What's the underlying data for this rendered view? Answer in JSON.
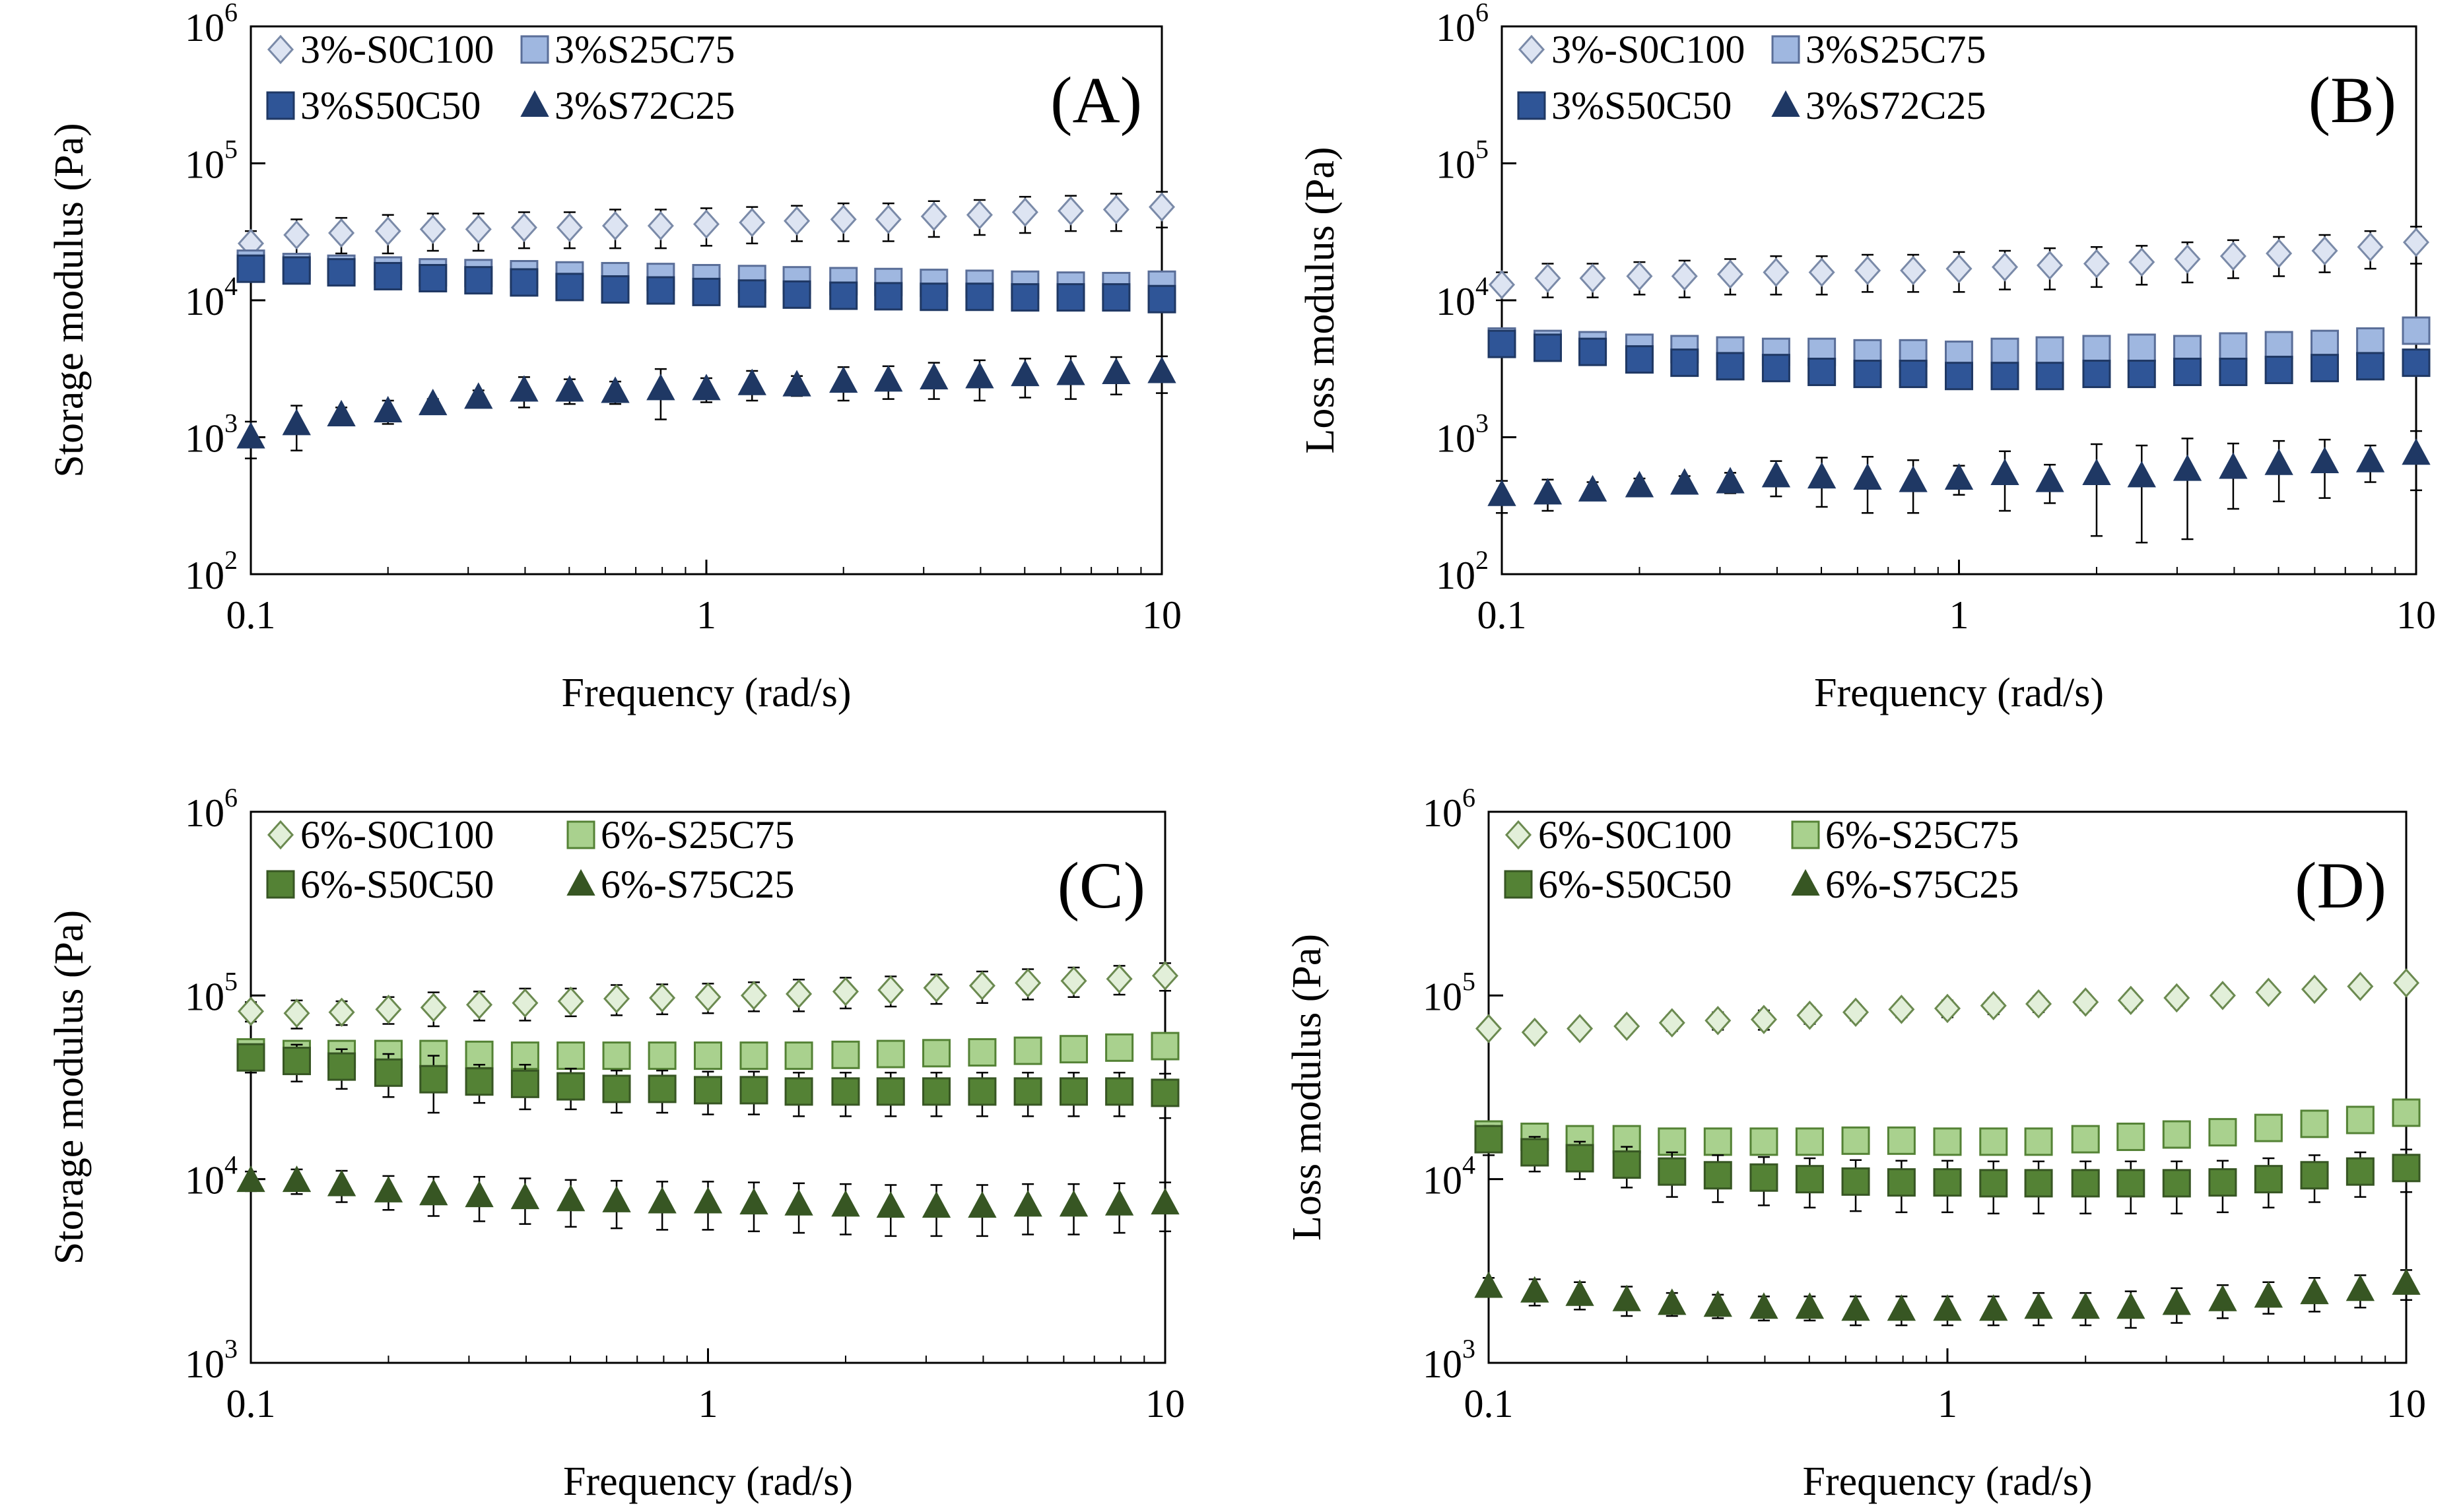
{
  "chart_data": [
    {
      "type": "scatter",
      "panel_label": "(A)",
      "xlabel": "Frequency (rad/s)",
      "ylabel": "Storage modulus (Pa)",
      "xscale": "log",
      "yscale": "log",
      "xlim": [
        0.1,
        10
      ],
      "ylim": [
        100,
        1000000
      ],
      "legend": "top-left",
      "x_tick_labels": [
        "0.1",
        "1",
        "10"
      ],
      "y_ticks": [
        {
          "base": "10",
          "exp": "2"
        },
        {
          "base": "10",
          "exp": "3"
        },
        {
          "base": "10",
          "exp": "4"
        },
        {
          "base": "10",
          "exp": "5"
        },
        {
          "base": "10",
          "exp": "6"
        }
      ],
      "x": [
        0.1,
        0.126,
        0.158,
        0.2,
        0.251,
        0.316,
        0.398,
        0.501,
        0.631,
        0.794,
        1.0,
        1.26,
        1.58,
        2.0,
        2.51,
        3.16,
        3.98,
        5.01,
        6.31,
        7.94,
        10.0
      ],
      "series": [
        {
          "name": "3%-S0C100",
          "marker": "diamond",
          "color": "#dde4f2",
          "stroke": "#7a8aa8",
          "values": [
            26000,
            30000,
            31000,
            32000,
            33000,
            33000,
            34000,
            34000,
            35000,
            35000,
            36000,
            37000,
            38000,
            39000,
            39000,
            41000,
            42000,
            44000,
            45000,
            46000,
            48000
          ],
          "err": [
            6000,
            9000,
            9000,
            10000,
            10000,
            10000,
            10000,
            10000,
            11000,
            11000,
            11000,
            11000,
            11000,
            12000,
            12000,
            12000,
            12000,
            13000,
            13000,
            14000,
            14000
          ]
        },
        {
          "name": "3%S25C75",
          "marker": "square",
          "color": "#9fb7e0",
          "stroke": "#5a6e98",
          "values": [
            18500,
            17500,
            17000,
            16500,
            16000,
            15800,
            15500,
            15200,
            15000,
            14800,
            14500,
            14300,
            14000,
            13800,
            13600,
            13400,
            13200,
            13000,
            12800,
            12700,
            13000
          ],
          "err": []
        },
        {
          "name": "3%S50C50",
          "marker": "square",
          "color": "#2f5597",
          "stroke": "#1f3864",
          "values": [
            17000,
            16500,
            16000,
            15000,
            14500,
            14000,
            13500,
            12500,
            12000,
            11800,
            11500,
            11200,
            11000,
            10800,
            10700,
            10600,
            10600,
            10500,
            10500,
            10500,
            10200
          ],
          "err": []
        },
        {
          "name": "3%S72C25",
          "marker": "triangle",
          "color": "#1f3864",
          "stroke": "#1f3864",
          "values": [
            1000,
            1250,
            1450,
            1550,
            1750,
            1950,
            2200,
            2200,
            2150,
            2250,
            2250,
            2450,
            2400,
            2550,
            2600,
            2700,
            2750,
            2850,
            2900,
            2950,
            3000
          ],
          "err": [
            300,
            450,
            200,
            300,
            150,
            250,
            550,
            450,
            400,
            900,
            450,
            600,
            400,
            700,
            700,
            800,
            900,
            900,
            1000,
            900,
            900
          ]
        }
      ]
    },
    {
      "type": "scatter",
      "panel_label": "(B)",
      "xlabel": "Frequency (rad/s)",
      "ylabel": "Loss modulus (Pa)",
      "xscale": "log",
      "yscale": "log",
      "xlim": [
        0.1,
        10
      ],
      "ylim": [
        100,
        1000000
      ],
      "legend": "top-left",
      "x_tick_labels": [
        "0.1",
        "1",
        "10"
      ],
      "y_ticks": [
        {
          "base": "10",
          "exp": "2"
        },
        {
          "base": "10",
          "exp": "3"
        },
        {
          "base": "10",
          "exp": "4"
        },
        {
          "base": "10",
          "exp": "5"
        },
        {
          "base": "10",
          "exp": "6"
        }
      ],
      "x": [
        0.1,
        0.126,
        0.158,
        0.2,
        0.251,
        0.316,
        0.398,
        0.501,
        0.631,
        0.794,
        1.0,
        1.26,
        1.58,
        2.0,
        2.51,
        3.16,
        3.98,
        5.01,
        6.31,
        7.94,
        10.0
      ],
      "series": [
        {
          "name": "3%-S0C100",
          "marker": "diamond",
          "color": "#dde4f2",
          "stroke": "#7a8aa8",
          "values": [
            13000,
            14500,
            14500,
            15000,
            15000,
            15500,
            16000,
            16000,
            16500,
            16500,
            17000,
            17500,
            18000,
            18500,
            19000,
            20000,
            21000,
            22000,
            23000,
            24500,
            26500
          ],
          "err": [
            3000,
            4000,
            4000,
            4000,
            4500,
            4500,
            5000,
            5000,
            5000,
            5000,
            5500,
            5500,
            6000,
            6000,
            6000,
            6500,
            6500,
            7000,
            7000,
            7500,
            8000
          ]
        },
        {
          "name": "3%S25C75",
          "marker": "square",
          "color": "#9fb7e0",
          "stroke": "#5a6e98",
          "values": [
            5000,
            4800,
            4700,
            4500,
            4400,
            4300,
            4200,
            4200,
            4100,
            4100,
            4000,
            4200,
            4300,
            4400,
            4500,
            4400,
            4600,
            4700,
            4800,
            5000,
            6000
          ],
          "err": []
        },
        {
          "name": "3%S50C50",
          "marker": "square",
          "color": "#2f5597",
          "stroke": "#1f3864",
          "values": [
            4800,
            4500,
            4200,
            3700,
            3500,
            3300,
            3200,
            3000,
            2900,
            2900,
            2800,
            2800,
            2800,
            2900,
            2900,
            3000,
            3000,
            3100,
            3200,
            3300,
            3500
          ],
          "err": []
        },
        {
          "name": "3%S72C25",
          "marker": "triangle",
          "color": "#1f3864",
          "stroke": "#1f3864",
          "values": [
            380,
            390,
            410,
            440,
            460,
            470,
            520,
            510,
            500,
            480,
            500,
            540,
            480,
            540,
            520,
            580,
            600,
            640,
            660,
            670,
            760
          ],
          "err": [
            100,
            100,
            60,
            60,
            60,
            80,
            150,
            200,
            220,
            200,
            120,
            250,
            150,
            350,
            350,
            400,
            300,
            300,
            300,
            200,
            350
          ]
        }
      ]
    },
    {
      "type": "scatter",
      "panel_label": "(C)",
      "xlabel": "Frequency (rad/s)",
      "ylabel": "Storage modulus (Pa)",
      "xscale": "log",
      "yscale": "log",
      "xlim": [
        0.1,
        10
      ],
      "ylim": [
        1000,
        1000000
      ],
      "legend": "top-left",
      "x_tick_labels": [
        "0.1",
        "1",
        "10"
      ],
      "y_ticks": [
        {
          "base": "10",
          "exp": "3"
        },
        {
          "base": "10",
          "exp": "4"
        },
        {
          "base": "10",
          "exp": "5"
        },
        {
          "base": "10",
          "exp": "6"
        }
      ],
      "x": [
        0.1,
        0.126,
        0.158,
        0.2,
        0.251,
        0.316,
        0.398,
        0.501,
        0.631,
        0.794,
        1.0,
        1.26,
        1.58,
        2.0,
        2.51,
        3.16,
        3.98,
        5.01,
        6.31,
        7.94,
        10.0
      ],
      "series": [
        {
          "name": "6%-S0C100",
          "marker": "diamond",
          "color": "#e2efd9",
          "stroke": "#6b8a50",
          "values": [
            82000,
            80000,
            81000,
            84000,
            86000,
            89000,
            91000,
            93000,
            96000,
            97000,
            98000,
            100000,
            102000,
            105000,
            107000,
            110000,
            113000,
            117000,
            120000,
            123000,
            128000
          ],
          "err": [
            10000,
            14000,
            12000,
            14000,
            18000,
            16000,
            18000,
            16000,
            18000,
            18000,
            18000,
            18000,
            20000,
            20000,
            20000,
            20000,
            22000,
            22000,
            22000,
            22000,
            22000
          ]
        },
        {
          "name": "6%-S25C75",
          "marker": "square",
          "color": "#a9d18e",
          "stroke": "#548235",
          "values": [
            49000,
            48000,
            48000,
            48000,
            48000,
            47500,
            47000,
            47000,
            47000,
            47000,
            47000,
            47000,
            47000,
            47500,
            48000,
            48500,
            49000,
            50000,
            51000,
            52000,
            53000
          ],
          "err": []
        },
        {
          "name": "6%-S50C50",
          "marker": "square",
          "color": "#548235",
          "stroke": "#375623",
          "values": [
            46000,
            44000,
            41000,
            38000,
            35000,
            34000,
            33000,
            32000,
            31000,
            31000,
            30500,
            30500,
            30000,
            30000,
            30000,
            30000,
            30000,
            30000,
            30000,
            30000,
            29500
          ],
          "err": [
            8000,
            10000,
            10000,
            10000,
            12000,
            8000,
            9000,
            8000,
            8000,
            8000,
            8000,
            8000,
            8000,
            8000,
            8000,
            8000,
            8000,
            8000,
            8000,
            8000,
            8000
          ]
        },
        {
          "name": "6%-S75C25",
          "marker": "triangle",
          "color": "#375623",
          "stroke": "#375623",
          "values": [
            9800,
            9800,
            9300,
            8600,
            8300,
            8100,
            7900,
            7700,
            7600,
            7500,
            7500,
            7400,
            7300,
            7200,
            7100,
            7100,
            7100,
            7200,
            7200,
            7300,
            7400
          ],
          "err": [
            1200,
            1500,
            1800,
            1800,
            2000,
            2200,
            2200,
            2200,
            2200,
            2200,
            2200,
            2200,
            2200,
            2200,
            2200,
            2200,
            2200,
            2200,
            2200,
            2200,
            2200
          ]
        }
      ]
    },
    {
      "type": "scatter",
      "panel_label": "(D)",
      "xlabel": "Frequency (rad/s)",
      "ylabel": "Loss modulus (Pa)",
      "xscale": "log",
      "yscale": "log",
      "xlim": [
        0.1,
        10
      ],
      "ylim": [
        1000,
        1000000
      ],
      "legend": "top-left",
      "x_tick_labels": [
        "0.1",
        "1",
        "10"
      ],
      "y_ticks": [
        {
          "base": "10",
          "exp": "3"
        },
        {
          "base": "10",
          "exp": "4"
        },
        {
          "base": "10",
          "exp": "5"
        },
        {
          "base": "10",
          "exp": "6"
        }
      ],
      "x": [
        0.1,
        0.126,
        0.158,
        0.2,
        0.251,
        0.316,
        0.398,
        0.501,
        0.631,
        0.794,
        1.0,
        1.26,
        1.58,
        2.0,
        2.51,
        3.16,
        3.98,
        5.01,
        6.31,
        7.94,
        10.0
      ],
      "series": [
        {
          "name": "6%-S0C100",
          "marker": "diamond",
          "color": "#e2efd9",
          "stroke": "#6b8a50",
          "values": [
            66000,
            63000,
            66000,
            68000,
            71000,
            73000,
            74000,
            78000,
            81000,
            84000,
            85000,
            88000,
            90000,
            92000,
            94000,
            97000,
            100000,
            104000,
            108000,
            112000,
            117000
          ],
          "err": [
            4000,
            5000,
            5000,
            6000,
            7000,
            8000,
            9000,
            8000,
            8000,
            8000,
            9000,
            9000,
            9000,
            9000,
            9000,
            9000,
            9000,
            9000,
            9000,
            9000,
            9000
          ]
        },
        {
          "name": "6%-S25C75",
          "marker": "square",
          "color": "#a9d18e",
          "stroke": "#548235",
          "values": [
            17500,
            17000,
            16500,
            16500,
            16000,
            16000,
            16000,
            16000,
            16200,
            16200,
            16000,
            16000,
            16000,
            16500,
            17000,
            17500,
            18000,
            19000,
            20000,
            21000,
            23000
          ],
          "err": []
        },
        {
          "name": "6%-S50C50",
          "marker": "square",
          "color": "#548235",
          "stroke": "#375623",
          "values": [
            16500,
            14000,
            13000,
            12000,
            11000,
            10500,
            10200,
            10000,
            9700,
            9600,
            9600,
            9500,
            9500,
            9500,
            9500,
            9500,
            9600,
            10000,
            10500,
            11000,
            11500
          ],
          "err": [
            3000,
            3000,
            3000,
            3000,
            3000,
            3000,
            3000,
            3000,
            3000,
            3000,
            3000,
            3000,
            3000,
            3000,
            3000,
            3000,
            3000,
            3000,
            3000,
            3000,
            3000
          ]
        },
        {
          "name": "6%-S75C25",
          "marker": "triangle",
          "color": "#375623",
          "stroke": "#375623",
          "values": [
            2600,
            2450,
            2350,
            2200,
            2100,
            2050,
            2000,
            2000,
            1950,
            1950,
            1950,
            1950,
            2000,
            2000,
            2000,
            2100,
            2200,
            2300,
            2400,
            2500,
            2700
          ],
          "err": [
            300,
            400,
            400,
            400,
            300,
            300,
            300,
            300,
            350,
            350,
            350,
            350,
            400,
            400,
            450,
            450,
            450,
            450,
            500,
            500,
            500
          ]
        }
      ]
    }
  ]
}
